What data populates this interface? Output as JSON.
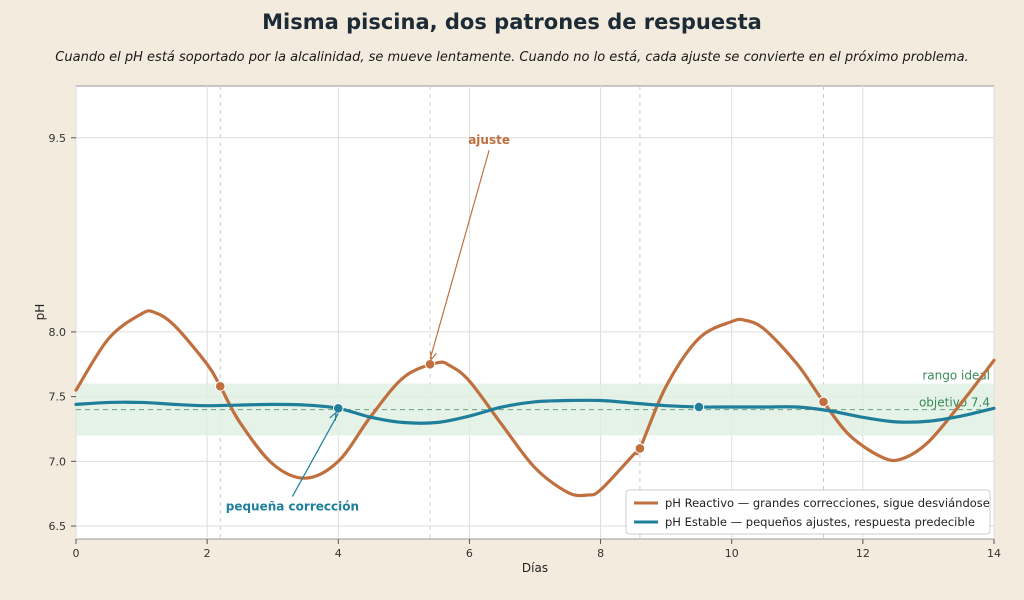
{
  "title": "Misma piscina, dos patrones de respuesta",
  "subtitle": "Cuando el pH está soportado por la alcalinidad, se mueve lentamente. Cuando no lo está, cada ajuste se convierte en el próximo problema.",
  "colors": {
    "reactive": "#c0703f",
    "stable": "#1f7f9a",
    "band": "#dff0e3",
    "band_text": "#3a8a5a",
    "background": "#f3ebdd"
  },
  "chart_data": {
    "type": "line",
    "xlabel": "Días",
    "ylabel": "pH",
    "xlim": [
      0,
      14
    ],
    "ylim": [
      6.4,
      9.9
    ],
    "x_ticks": [
      "0",
      "2",
      "4",
      "6",
      "8",
      "10",
      "12",
      "14"
    ],
    "y_ticks": [
      "6.5",
      "7.0",
      "7.5",
      "8.0",
      "9.5"
    ],
    "grid": true,
    "legend_position": "bottom-right",
    "ideal_band": {
      "low": 7.2,
      "high": 7.6,
      "label": "rango ideal"
    },
    "target": {
      "value": 7.4,
      "label": "objetivo 7.4"
    },
    "series": [
      {
        "name": "pH Reactivo — grandes correcciones, sigue desviándose",
        "x": [
          0,
          0.5,
          1.0,
          1.2,
          1.5,
          2.0,
          2.2,
          2.5,
          3.0,
          3.5,
          4.0,
          4.5,
          5.0,
          5.5,
          5.7,
          6.0,
          6.5,
          7.0,
          7.5,
          7.8,
          8.0,
          8.5,
          8.6,
          9.0,
          9.5,
          10.0,
          10.2,
          10.5,
          11.0,
          11.4,
          11.8,
          12.3,
          12.6,
          13.0,
          13.5,
          14.0
        ],
        "y": [
          7.55,
          7.95,
          8.14,
          8.15,
          8.05,
          7.75,
          7.58,
          7.3,
          6.98,
          6.87,
          7.0,
          7.35,
          7.65,
          7.76,
          7.74,
          7.62,
          7.28,
          6.95,
          6.76,
          6.74,
          6.78,
          7.05,
          7.1,
          7.58,
          7.95,
          8.08,
          8.09,
          8.02,
          7.75,
          7.46,
          7.2,
          7.03,
          7.02,
          7.15,
          7.45,
          7.78
        ]
      },
      {
        "name": "pH Estable — pequeños ajustes, respuesta predecible",
        "x": [
          0,
          0.5,
          1.0,
          1.5,
          2.0,
          2.5,
          3.0,
          3.5,
          4.0,
          4.5,
          5.0,
          5.5,
          6.0,
          6.5,
          7.0,
          7.5,
          8.0,
          8.5,
          9.0,
          9.5,
          10.0,
          10.5,
          11.0,
          11.5,
          12.0,
          12.5,
          13.0,
          13.5,
          14.0
        ],
        "y": [
          7.44,
          7.455,
          7.455,
          7.44,
          7.43,
          7.435,
          7.44,
          7.435,
          7.41,
          7.34,
          7.3,
          7.3,
          7.35,
          7.42,
          7.46,
          7.47,
          7.47,
          7.45,
          7.43,
          7.42,
          7.42,
          7.42,
          7.42,
          7.39,
          7.34,
          7.305,
          7.31,
          7.35,
          7.41
        ]
      }
    ],
    "markers": {
      "reactive": [
        {
          "x": 2.2,
          "y": 7.58
        },
        {
          "x": 5.4,
          "y": 7.75
        },
        {
          "x": 8.6,
          "y": 7.1
        },
        {
          "x": 11.4,
          "y": 7.46
        }
      ],
      "stable": [
        {
          "x": 4.0,
          "y": 7.41
        },
        {
          "x": 9.5,
          "y": 7.42
        }
      ]
    },
    "markers_guides_x": [
      2.2,
      5.4,
      8.6,
      11.4
    ],
    "annotations": [
      {
        "text": "ajuste",
        "target_x": 5.4,
        "target_y": 7.75,
        "label_x": 6.3,
        "label_y": 9.45,
        "color": "#c0703f"
      },
      {
        "text": "pequeña corrección",
        "target_x": 4.0,
        "target_y": 7.41,
        "label_x": 3.3,
        "label_y": 6.62,
        "color": "#1f7f9a"
      }
    ]
  }
}
